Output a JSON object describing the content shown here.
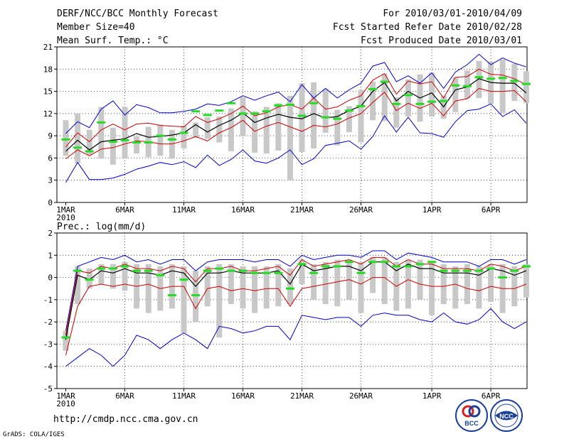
{
  "header": {
    "title": "DERF/NCC/BCC Monthly Forecast",
    "member_size": "Member Size=40",
    "variable": "Mean Surf. Temp.: °C",
    "period": "For 2010/03/01-2010/04/09",
    "start": "Fcst Started Refer Date 2010/02/28",
    "produced": "Fcst Produced Date 2010/03/01"
  },
  "footer": {
    "url": "http://cmdp.ncc.cma.gov.cn",
    "credit": "GrADS: COLA/IGES",
    "logo_bcc": "BCC",
    "logo_ncc": "NCC"
  },
  "colors": {
    "max_min": "#0000cc",
    "spread": "#cc0000",
    "mean": "#000000",
    "box": "#c8c8c8",
    "obs": "#22dd22"
  },
  "chart_data": [
    {
      "type": "line",
      "title": "Mean Surf. Temp.: °C",
      "xlabel": "",
      "ylabel": "",
      "ylim": [
        0,
        21
      ],
      "yticks": [
        0,
        3,
        6,
        9,
        12,
        15,
        18,
        21
      ],
      "xlim": [
        0,
        40
      ],
      "xtick_labels": [
        {
          "day": 0,
          "label": "1MAR",
          "sub": "2010"
        },
        {
          "day": 5,
          "label": "6MAR"
        },
        {
          "day": 10,
          "label": "11MAR"
        },
        {
          "day": 15,
          "label": "16MAR"
        },
        {
          "day": 20,
          "label": "21MAR"
        },
        {
          "day": 25,
          "label": "26MAR"
        },
        {
          "day": 31,
          "label": "1APR"
        },
        {
          "day": 36,
          "label": "6APR"
        }
      ],
      "series": [
        {
          "name": "max",
          "values": [
            9.3,
            10.9,
            10.1,
            12.6,
            13.7,
            11.8,
            13.2,
            12.8,
            12.1,
            12.1,
            12.3,
            12.6,
            13.3,
            13.1,
            13.6,
            14.4,
            13.8,
            14.4,
            14.9,
            13.6,
            15.9,
            14.1,
            15.4,
            14.1,
            15.2,
            16.1,
            18.4,
            18.9,
            16.3,
            17.1,
            16.1,
            17.5,
            15.4,
            17.6,
            18.6,
            20.0,
            18.6,
            19.5,
            18.8,
            18.3
          ]
        },
        {
          "name": "upper",
          "values": [
            7.5,
            9.4,
            8.2,
            9.8,
            10.6,
            9.8,
            10.6,
            10.7,
            10.4,
            10.3,
            10.2,
            11.6,
            10.8,
            11.3,
            12.0,
            13.0,
            11.7,
            12.1,
            12.9,
            13.2,
            12.6,
            14.1,
            12.6,
            12.9,
            13.8,
            14.4,
            16.5,
            17.4,
            14.6,
            16.4,
            16.0,
            16.3,
            14.1,
            16.9,
            17.0,
            18.0,
            17.3,
            17.2,
            16.7,
            15.9
          ]
        },
        {
          "name": "mean",
          "values": [
            6.9,
            8.4,
            7.1,
            8.2,
            8.4,
            8.6,
            9.3,
            8.8,
            8.9,
            9.1,
            9.4,
            10.5,
            9.5,
            10.4,
            11.1,
            12.1,
            10.8,
            11.4,
            11.9,
            11.5,
            11.3,
            12.0,
            11.4,
            11.6,
            12.4,
            13.0,
            15.0,
            16.2,
            13.7,
            15.0,
            14.1,
            14.8,
            12.9,
            15.2,
            15.6,
            16.7,
            16.2,
            16.1,
            16.1,
            14.8
          ]
        },
        {
          "name": "lower",
          "values": [
            5.9,
            7.1,
            6.3,
            7.2,
            7.4,
            7.9,
            8.3,
            8.2,
            7.9,
            7.9,
            8.3,
            8.9,
            8.3,
            9.4,
            10.1,
            11.1,
            9.6,
            10.3,
            10.8,
            10.2,
            9.6,
            10.4,
            10.2,
            10.6,
            11.4,
            12.0,
            13.5,
            14.9,
            12.4,
            13.4,
            12.7,
            13.4,
            11.7,
            13.7,
            14.0,
            15.4,
            15.0,
            15.0,
            15.1,
            13.6
          ]
        },
        {
          "name": "min",
          "values": [
            2.7,
            5.4,
            3.1,
            3.1,
            3.3,
            3.8,
            4.5,
            4.9,
            5.4,
            5.1,
            5.5,
            4.7,
            6.4,
            5.0,
            5.8,
            7.1,
            5.6,
            5.3,
            6.0,
            7.1,
            5.1,
            5.9,
            7.7,
            8.0,
            8.3,
            7.2,
            8.9,
            11.7,
            9.5,
            11.5,
            9.4,
            9.3,
            8.8,
            10.9,
            12.4,
            12.6,
            13.3,
            11.6,
            12.5,
            10.7
          ]
        },
        {
          "name": "box_top",
          "values": [
            11.1,
            12.0,
            9.8,
            12.9,
            10.1,
            12.9,
            8.9,
            10.2,
            10.5,
            9.8,
            10.4,
            10.8,
            11.5,
            11.6,
            12.7,
            14.2,
            12.3,
            12.9,
            13.4,
            14.4,
            16.1,
            16.2,
            15.3,
            12.5,
            13.0,
            15.2,
            16.3,
            17.4,
            14.2,
            16.6,
            17.3,
            17.5,
            14.4,
            16.9,
            17.8,
            19.1,
            19.0,
            19.3,
            18.7,
            17.7
          ]
        },
        {
          "name": "box_bottom",
          "values": [
            6.3,
            5.3,
            6.4,
            5.9,
            5.1,
            5.9,
            6.6,
            6.1,
            6.3,
            5.9,
            7.3,
            8.7,
            8.6,
            8.1,
            6.9,
            8.9,
            6.7,
            6.6,
            7.0,
            3.0,
            6.8,
            7.3,
            9.4,
            7.7,
            9.5,
            8.1,
            11.1,
            11.0,
            10.1,
            11.6,
            10.9,
            11.6,
            11.3,
            12.2,
            14.0,
            14.1,
            13.3,
            12.1,
            13.7,
            13.4
          ]
        },
        {
          "name": "obs",
          "values": [
            8.5,
            7.4,
            6.9,
            10.8,
            8.2,
            8.4,
            8.1,
            8.1,
            9.0,
            8.5,
            9.4,
            12.3,
            11.8,
            12.4,
            13.4,
            12.0,
            12.0,
            12.3,
            13.1,
            13.2,
            11.7,
            13.4,
            11.5,
            11.3,
            12.4,
            13.0,
            15.3,
            16.3,
            13.3,
            14.5,
            13.3,
            13.6,
            13.7,
            15.8,
            15.7,
            16.9,
            16.7,
            16.8,
            16.4,
            16.0
          ]
        }
      ]
    },
    {
      "type": "line",
      "title": "Prec.: log(mm/d)",
      "xlabel": "",
      "ylabel": "",
      "ylim": [
        -5,
        2
      ],
      "yticks": [
        -5,
        -4,
        -3,
        -2,
        -1,
        0,
        1,
        2
      ],
      "xlim": [
        0,
        40
      ],
      "xtick_labels": [
        {
          "day": 0,
          "label": "1MAR",
          "sub": "2010"
        },
        {
          "day": 5,
          "label": "6MAR"
        },
        {
          "day": 10,
          "label": "11MAR"
        },
        {
          "day": 15,
          "label": "16MAR"
        },
        {
          "day": 20,
          "label": "21MAR"
        },
        {
          "day": 25,
          "label": "26MAR"
        },
        {
          "day": 31,
          "label": "1APR"
        },
        {
          "day": 36,
          "label": "6APR"
        }
      ],
      "series": [
        {
          "name": "max",
          "values": [
            -2.4,
            0.5,
            0.7,
            0.9,
            0.8,
            1.0,
            0.7,
            0.8,
            0.6,
            0.8,
            0.8,
            0.3,
            0.7,
            0.8,
            0.8,
            0.8,
            0.7,
            0.8,
            0.8,
            0.5,
            1.0,
            0.8,
            0.9,
            1.0,
            1.0,
            0.9,
            1.2,
            1.2,
            0.8,
            1.1,
            1.0,
            0.9,
            0.7,
            0.7,
            0.7,
            0.5,
            0.8,
            0.8,
            0.6,
            0.8
          ]
        },
        {
          "name": "upper",
          "values": [
            -2.6,
            0.3,
            0.2,
            0.5,
            0.4,
            0.6,
            0.4,
            0.4,
            0.3,
            0.5,
            0.4,
            -0.2,
            0.4,
            0.4,
            0.5,
            0.3,
            0.3,
            0.4,
            0.5,
            0.1,
            0.8,
            0.5,
            0.6,
            0.7,
            0.8,
            0.6,
            0.9,
            0.9,
            0.5,
            0.8,
            0.6,
            0.6,
            0.4,
            0.4,
            0.4,
            0.3,
            0.6,
            0.5,
            0.3,
            0.5
          ]
        },
        {
          "name": "mean",
          "values": [
            -2.8,
            0.1,
            -0.1,
            0.3,
            0.2,
            0.4,
            0.2,
            0.2,
            0.1,
            0.3,
            0.2,
            -0.4,
            0.2,
            0.2,
            0.3,
            0.2,
            0.2,
            0.2,
            0.3,
            -0.3,
            0.6,
            0.3,
            0.4,
            0.5,
            0.5,
            0.3,
            0.7,
            0.7,
            0.3,
            0.6,
            0.4,
            0.4,
            0.2,
            0.2,
            0.2,
            0.1,
            0.4,
            0.3,
            0.1,
            0.3
          ]
        },
        {
          "name": "lower",
          "values": [
            -3.5,
            -1.3,
            -0.4,
            -0.3,
            -0.4,
            -0.3,
            -0.4,
            -0.3,
            -0.5,
            -0.4,
            -0.4,
            -1.4,
            -0.5,
            -0.4,
            -0.6,
            -0.5,
            -0.6,
            -0.5,
            -0.5,
            -1.3,
            -0.5,
            -0.4,
            -0.3,
            -0.2,
            -0.1,
            -0.3,
            0.0,
            0.0,
            -0.4,
            -0.1,
            -0.3,
            -0.4,
            -0.4,
            -0.3,
            -0.5,
            -0.6,
            -0.4,
            -0.5,
            -0.5,
            -0.3
          ]
        },
        {
          "name": "min",
          "values": [
            -4.0,
            -3.6,
            -3.2,
            -3.5,
            -4.0,
            -3.5,
            -2.6,
            -2.8,
            -3.2,
            -2.8,
            -2.5,
            -2.8,
            -3.2,
            -2.2,
            -2.3,
            -2.5,
            -2.4,
            -2.2,
            -2.2,
            -2.8,
            -1.7,
            -1.8,
            -1.9,
            -1.8,
            -1.8,
            -2.2,
            -1.7,
            -1.6,
            -1.7,
            -1.7,
            -1.9,
            -2.0,
            -1.6,
            -2.0,
            -2.1,
            -1.9,
            -1.4,
            -2.0,
            -2.3,
            -2.0
          ]
        },
        {
          "name": "box_top",
          "values": [
            -2.4,
            0.5,
            0.4,
            0.6,
            0.6,
            0.7,
            0.6,
            0.6,
            0.5,
            0.6,
            0.5,
            0.3,
            0.5,
            0.6,
            0.6,
            0.5,
            0.5,
            0.5,
            0.6,
            0.4,
            0.8,
            0.6,
            0.7,
            0.8,
            0.8,
            0.7,
            0.9,
            0.9,
            0.7,
            0.8,
            0.8,
            0.7,
            0.6,
            0.5,
            0.6,
            0.5,
            0.6,
            0.6,
            0.5,
            0.6
          ]
        },
        {
          "name": "box_bottom",
          "values": [
            -3.3,
            -1.2,
            -0.5,
            -0.3,
            -0.5,
            -0.6,
            -1.4,
            -1.6,
            -1.5,
            -1.4,
            -2.5,
            -2.0,
            -1.3,
            -2.7,
            -1.2,
            -1.4,
            -1.6,
            -1.4,
            -1.3,
            -1.2,
            -0.3,
            -1.0,
            -1.2,
            -1.3,
            -1.0,
            -1.6,
            -0.7,
            -1.2,
            -1.5,
            -1.4,
            -1.0,
            -1.7,
            -1.2,
            -1.4,
            -1.2,
            -1.4,
            -1.1,
            -1.6,
            -1.3,
            -0.9
          ]
        },
        {
          "name": "obs",
          "values": [
            -2.7,
            0.3,
            -0.1,
            0.4,
            0.4,
            0.5,
            0.3,
            0.3,
            0.1,
            -0.8,
            -0.1,
            -0.8,
            0.3,
            0.4,
            0.3,
            0.3,
            0.2,
            0.2,
            0.2,
            -0.5,
            0.6,
            0.2,
            0.5,
            0.5,
            0.7,
            0.2,
            0.7,
            0.7,
            0.5,
            0.5,
            0.6,
            0.7,
            0.3,
            0.3,
            0.3,
            0.3,
            0.4,
            0.0,
            0.3,
            0.5
          ]
        }
      ]
    }
  ]
}
